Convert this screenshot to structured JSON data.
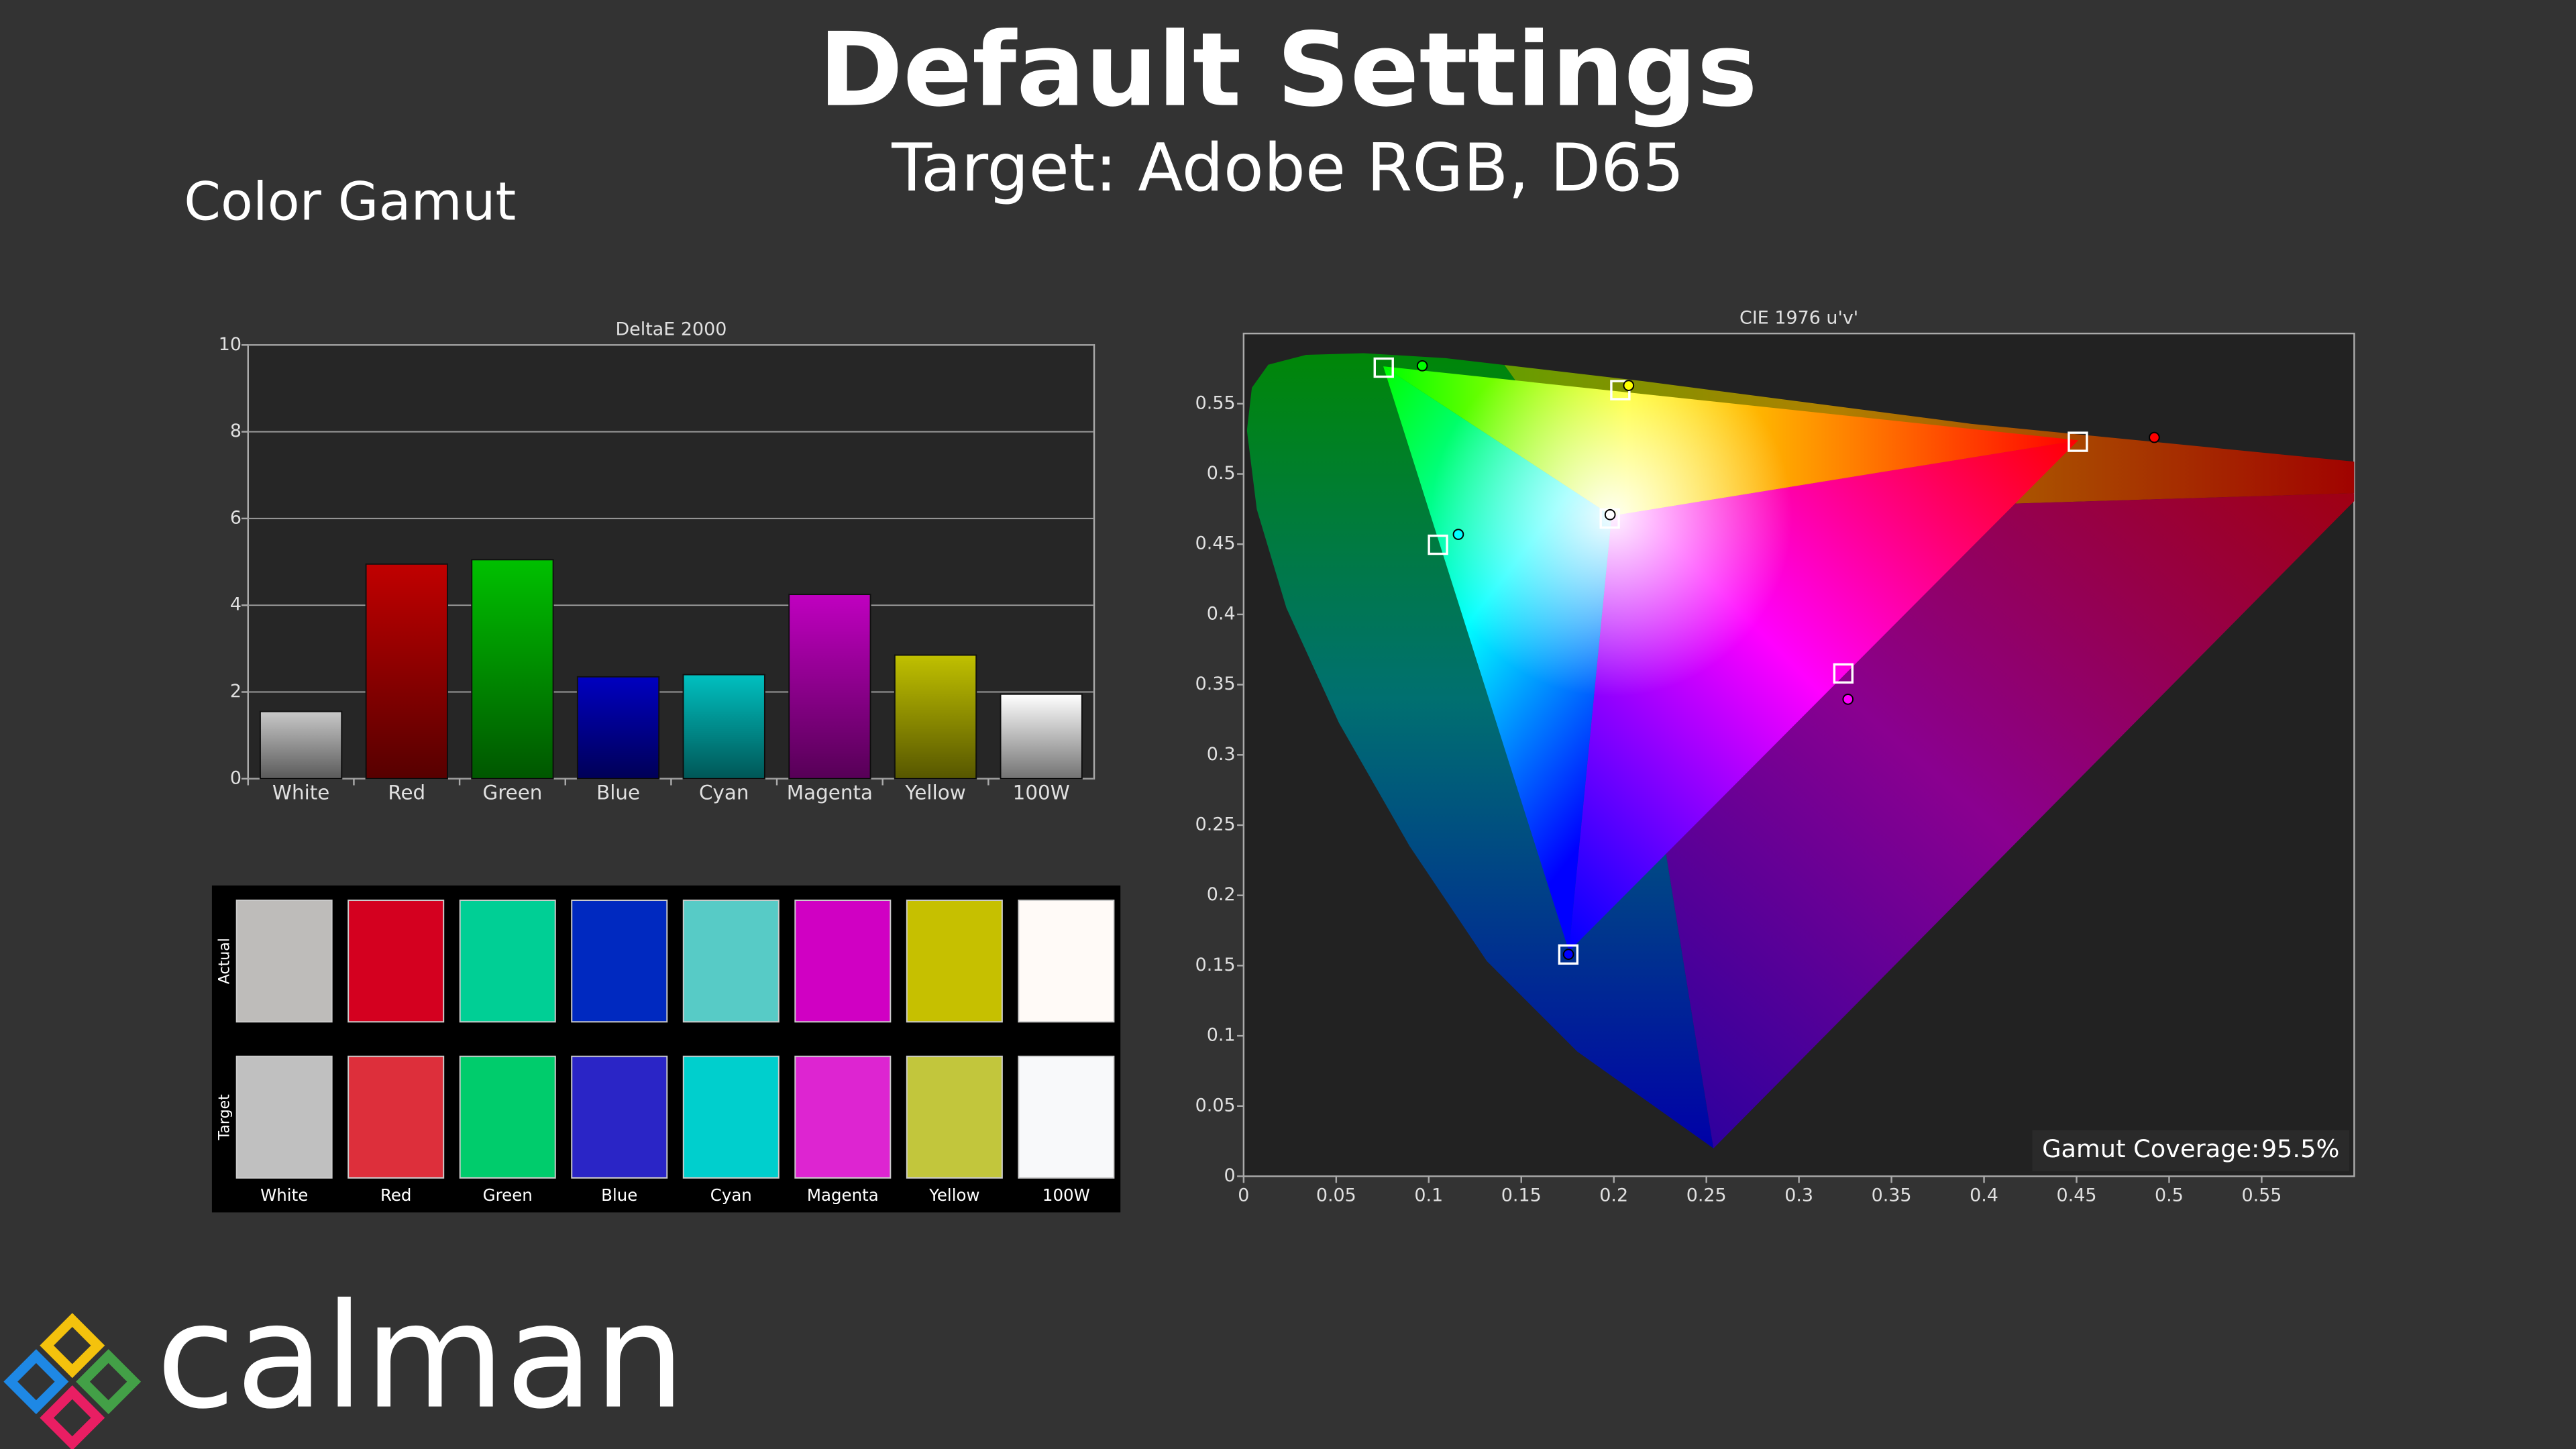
{
  "header": {
    "title": "Default Settings",
    "subtitle": "Target: Adobe RGB, D65",
    "section": "Color Gamut"
  },
  "logo": "calman",
  "swatches": {
    "actual_label": "Actual",
    "target_label": "Target",
    "actual": [
      "#bebcba",
      "#d4001f",
      "#00cf95",
      "#0029c0",
      "#57cbc6",
      "#d000c3",
      "#c6c000",
      "#fffaf7"
    ],
    "target": [
      "#c0c0c0",
      "#dd2f3b",
      "#00cc6c",
      "#2a25c6",
      "#00cfcd",
      "#dd25d1",
      "#c2c63c",
      "#f8f9fa"
    ]
  },
  "chart_data": [
    {
      "type": "bar",
      "title": "DeltaE 2000",
      "categories": [
        "White",
        "Red",
        "Green",
        "Blue",
        "Cyan",
        "Magenta",
        "Yellow",
        "100W"
      ],
      "values": [
        1.55,
        4.95,
        5.05,
        2.35,
        2.4,
        4.25,
        2.85,
        1.95
      ],
      "colors": [
        "#c8c8c8",
        "#c00000",
        "#00c000",
        "#0000c0",
        "#00c0c0",
        "#c000c0",
        "#c0c000",
        "#ffffff"
      ],
      "ylim": [
        0,
        10
      ],
      "yticks": [
        0,
        2,
        4,
        6,
        8,
        10
      ],
      "grid": true
    },
    {
      "type": "scatter",
      "title": "CIE 1976 u'v'",
      "xlim": [
        0,
        0.6
      ],
      "ylim": [
        0,
        0.6
      ],
      "xticks": [
        0,
        0.05,
        0.1,
        0.15,
        0.2,
        0.25,
        0.3,
        0.35,
        0.4,
        0.45,
        0.5,
        0.55
      ],
      "yticks": [
        0,
        0.05,
        0.1,
        0.15,
        0.2,
        0.25,
        0.3,
        0.35,
        0.4,
        0.45,
        0.5,
        0.55
      ],
      "grid": false,
      "series": [
        {
          "marker": "square",
          "color": "#ffffff",
          "x": [
            0.1978,
            0.4507,
            0.0757,
            0.1754,
            0.105,
            0.324,
            0.2035
          ],
          "y": [
            0.4683,
            0.5229,
            0.5757,
            0.1579,
            0.4496,
            0.358,
            0.5597
          ]
        },
        {
          "marker": "circle",
          "colors": [
            "#ffffff",
            "#ff0000",
            "#00ff00",
            "#0000ff",
            "#00ffff",
            "#ff00ff",
            "#ffff00"
          ],
          "x": [
            0.198,
            0.492,
            0.0965,
            0.1755,
            0.116,
            0.3265,
            0.208
          ],
          "y": [
            0.471,
            0.526,
            0.577,
            0.158,
            0.457,
            0.3396,
            0.563
          ]
        }
      ],
      "annotation": {
        "label": "Gamut Coverage:",
        "value": 95.5,
        "value_label": "95.5%"
      }
    }
  ]
}
